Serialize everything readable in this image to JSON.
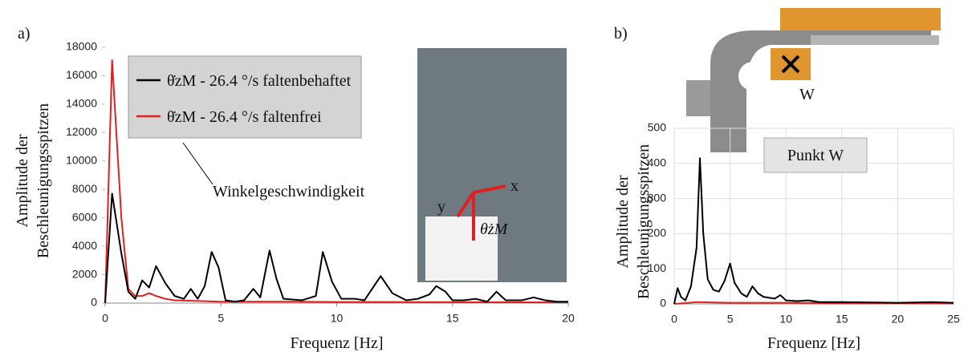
{
  "chart_data": [
    {
      "type": "line",
      "panel_label": "a)",
      "y_label": [
        "Amplitude der",
        "Beschleunigungsspitzen"
      ],
      "x_label": "Frequenz [Hz]",
      "xlim": [
        0,
        20
      ],
      "xticks": [
        0,
        5,
        10,
        15,
        20
      ],
      "ylim": [
        0,
        18000
      ],
      "yticks": [
        0,
        2000,
        4000,
        6000,
        8000,
        10000,
        12000,
        14000,
        16000,
        18000
      ],
      "grid": false,
      "legend": "upper left",
      "annotation": "Winkelgeschwindigkeit",
      "inset_labels": [
        "x",
        "y",
        "θ̇zM"
      ],
      "series": [
        {
          "name": "θ̇zM - 26.4 °/s  faltenbehaftet",
          "color": "#000000",
          "x": [
            0,
            0.3,
            0.7,
            1.0,
            1.3,
            1.6,
            1.9,
            2.2,
            2.6,
            3.0,
            3.4,
            3.7,
            4.0,
            4.3,
            4.6,
            4.9,
            5.2,
            5.6,
            6.0,
            6.4,
            6.7,
            7.1,
            7.4,
            7.7,
            8.5,
            9.1,
            9.4,
            9.8,
            10.2,
            10.8,
            11.2,
            11.9,
            12.4,
            13.0,
            13.5,
            14.0,
            14.3,
            14.7,
            15.0,
            15.5,
            16.0,
            16.5,
            16.9,
            17.3,
            18.0,
            18.5,
            19.0,
            19.5,
            20.0
          ],
          "values": [
            0,
            7700,
            3500,
            800,
            300,
            1600,
            1100,
            2600,
            1400,
            500,
            300,
            1000,
            300,
            1200,
            3600,
            2500,
            200,
            100,
            200,
            1000,
            400,
            3700,
            1700,
            300,
            200,
            500,
            3600,
            1500,
            300,
            300,
            200,
            1900,
            700,
            200,
            300,
            600,
            1200,
            800,
            200,
            200,
            300,
            100,
            800,
            200,
            200,
            400,
            200,
            100,
            100
          ]
        },
        {
          "name": "θ̇zM - 26.4 °/s  faltenfrei",
          "color": "#e02020",
          "x": [
            0,
            0.3,
            0.7,
            1.0,
            1.3,
            1.6,
            1.9,
            2.2,
            2.6,
            3.0,
            4.0,
            5.0,
            6.0,
            8.0,
            10.0,
            12.0,
            15.0,
            20.0
          ],
          "values": [
            0,
            17100,
            6000,
            1000,
            500,
            500,
            700,
            500,
            300,
            200,
            150,
            100,
            100,
            100,
            80,
            80,
            60,
            50
          ]
        }
      ]
    },
    {
      "type": "line",
      "panel_label": "b)",
      "y_label": [
        "Amplitude der",
        "Beschleunigungsspitzen"
      ],
      "x_label": "Frequenz [Hz]",
      "xlim": [
        0,
        25
      ],
      "xticks": [
        0,
        5,
        10,
        15,
        20,
        25
      ],
      "ylim": [
        0,
        500
      ],
      "yticks": [
        0,
        100,
        200,
        300,
        400,
        500
      ],
      "grid": true,
      "point_label": "W",
      "annotation": "Punkt W",
      "series": [
        {
          "color": "#000000",
          "x": [
            0,
            0.3,
            0.6,
            1.0,
            1.5,
            2.0,
            2.3,
            2.6,
            3.0,
            3.5,
            4.0,
            4.5,
            5.0,
            5.4,
            6.0,
            6.5,
            7.0,
            7.5,
            8.0,
            9.0,
            9.5,
            10.0,
            11.0,
            12.0,
            13.0,
            15.0,
            18.0,
            20.0,
            23.0,
            25.0
          ],
          "values": [
            0,
            45,
            20,
            10,
            50,
            160,
            415,
            200,
            70,
            40,
            35,
            65,
            115,
            60,
            30,
            20,
            50,
            30,
            20,
            15,
            25,
            10,
            8,
            10,
            5,
            5,
            4,
            3,
            5,
            3
          ]
        },
        {
          "color": "#e02020",
          "x": [
            0,
            2,
            5,
            10,
            15,
            20,
            25
          ],
          "values": [
            0,
            5,
            3,
            3,
            2,
            2,
            1
          ]
        }
      ]
    }
  ]
}
